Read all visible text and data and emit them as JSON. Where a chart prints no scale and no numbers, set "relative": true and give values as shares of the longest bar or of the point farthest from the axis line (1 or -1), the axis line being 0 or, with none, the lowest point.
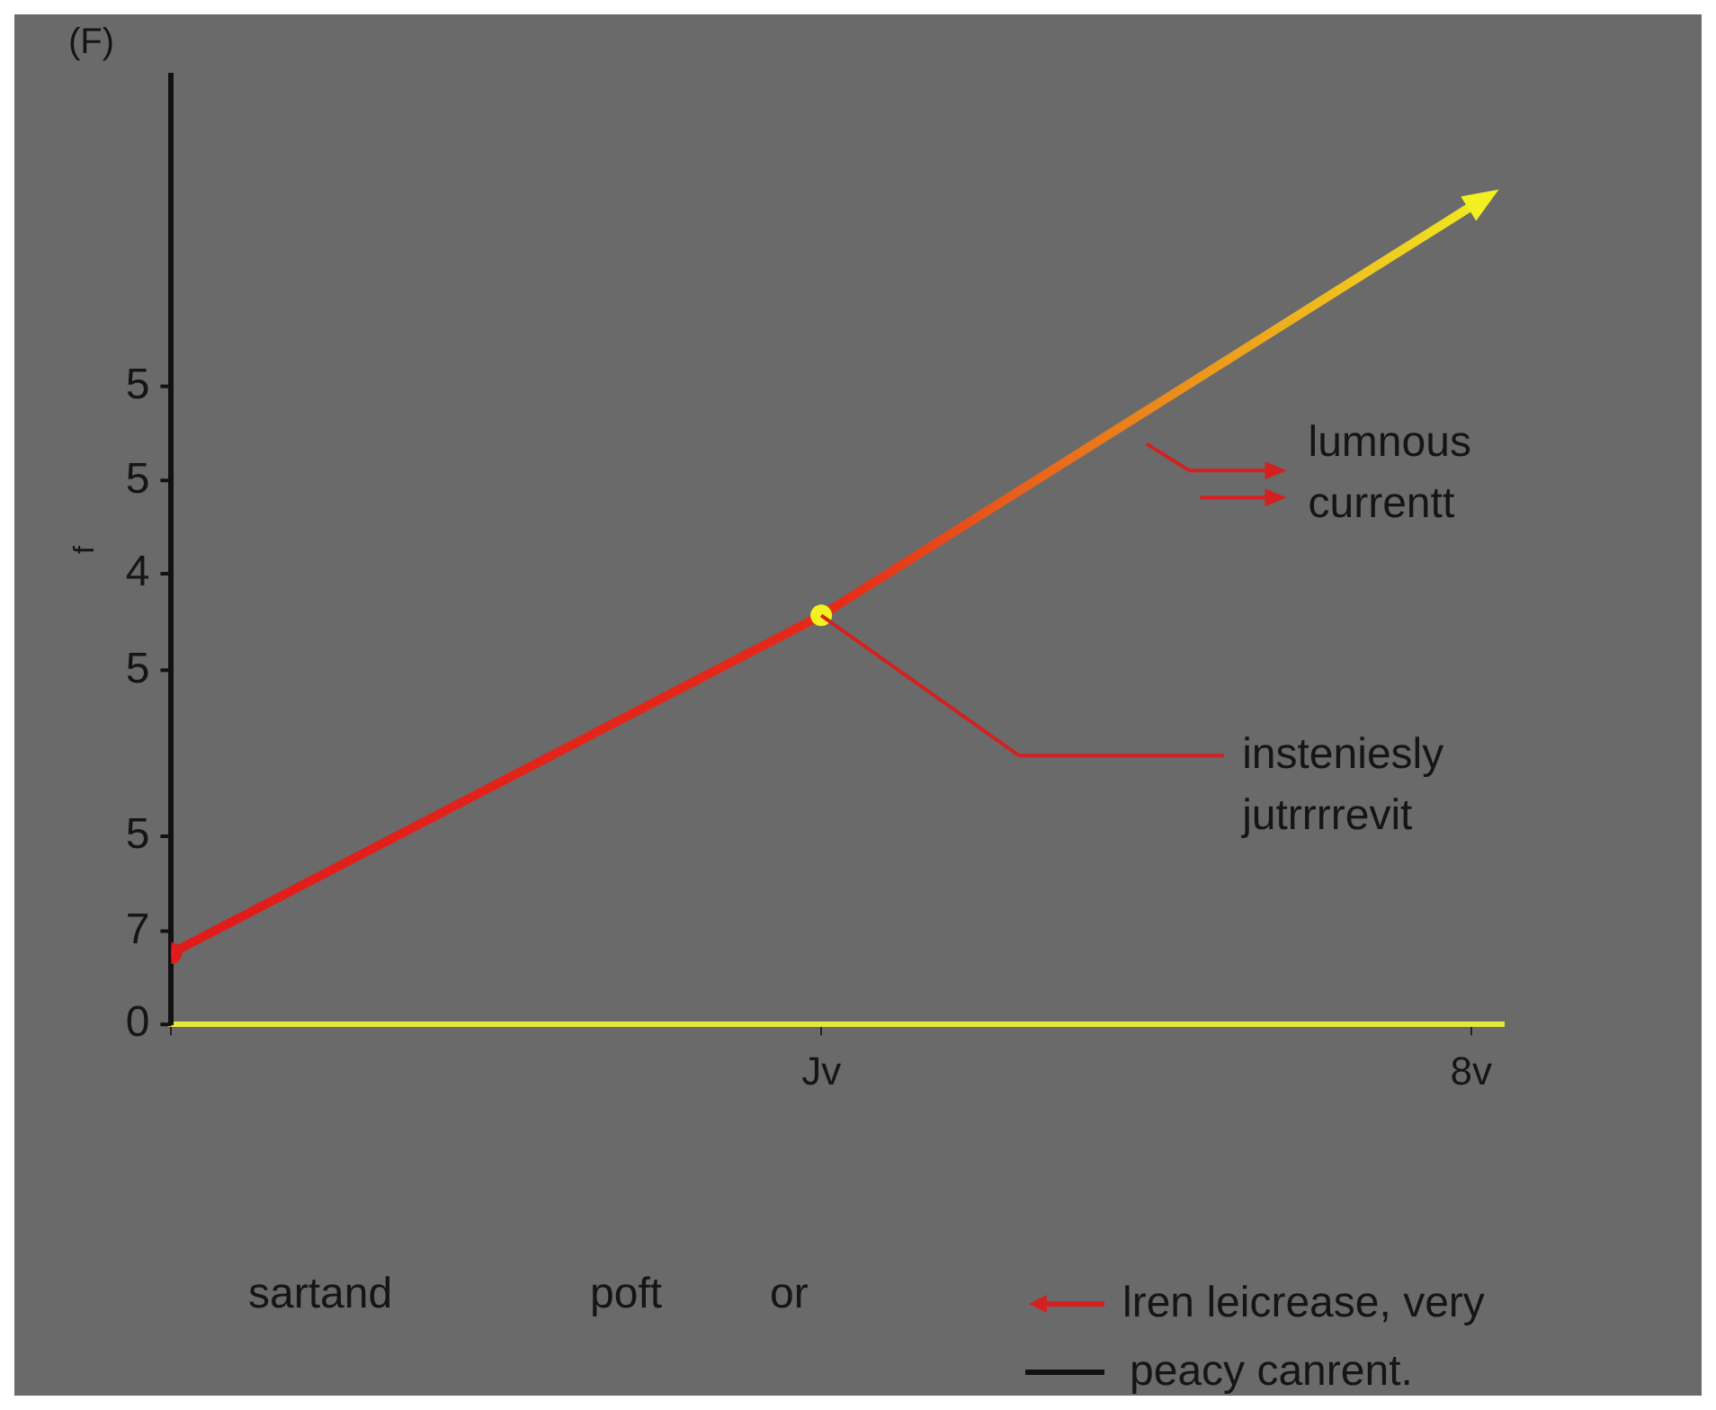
{
  "chart_data": {
    "type": "line",
    "title": "(F)",
    "ylabel": "f",
    "relative": true,
    "categories": [
      null,
      "Jv",
      "8v"
    ],
    "series": [
      {
        "colors": [
          "#e01b1b",
          "#e52a18",
          "#f2f020"
        ],
        "values": [
          0.087,
          0.5,
          1
        ]
      },
      {
        "type": "scatter",
        "marker": "circle",
        "color": "#e01b1b",
        "x": [
          null
        ],
        "values": [
          0.087
        ]
      },
      {
        "type": "scatter",
        "marker": "circle",
        "color": "#f5f020",
        "x": [
          "Jv"
        ],
        "values": [
          0.5
        ]
      }
    ],
    "annotations": [
      "lumnous currentt",
      {
        "text": "insteniesly jutrrrrevit",
        "x": "Jv",
        "y": 0.5
      },
      "0",
      "7",
      "5",
      "5",
      "4",
      "5",
      "5",
      "sartand",
      "poft",
      "or",
      "lren leicrease, very",
      "peacy canrent."
    ],
    "legend": false
  }
}
